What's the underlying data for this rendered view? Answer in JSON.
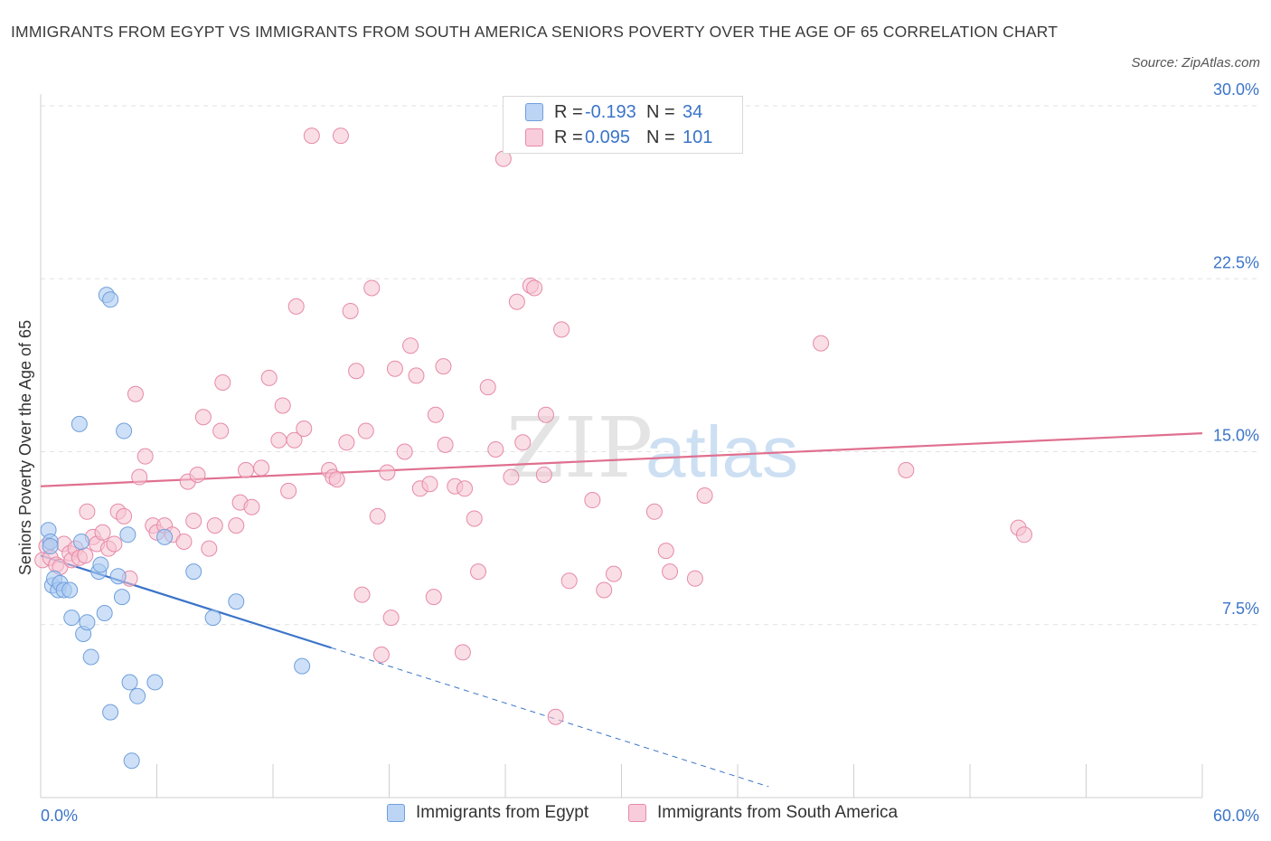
{
  "title": "IMMIGRANTS FROM EGYPT VS IMMIGRANTS FROM SOUTH AMERICA SENIORS POVERTY OVER THE AGE OF 65 CORRELATION CHART",
  "source": "Source: ZipAtlas.com",
  "watermark": {
    "zip": "ZIP",
    "atlas": "atlas"
  },
  "legend": {
    "egypt": {
      "r_label": "R =",
      "r_value": "-0.193",
      "n_label": "N =",
      "n_value": "34"
    },
    "south_america": {
      "r_label": "R =",
      "r_value": "0.095",
      "n_label": "N =",
      "n_value": "101"
    }
  },
  "bottom_legend": {
    "egypt": "Immigrants from Egypt",
    "south_america": "Immigrants from South America"
  },
  "colors": {
    "egypt_fill": "#aecbf2",
    "egypt_stroke": "#6f9fdc",
    "egypt_line": "#3b74c9",
    "sa_fill": "#f6c2d2",
    "sa_stroke": "#e68aa8",
    "sa_line": "#e0708f",
    "grid": "#e2e2e2",
    "tick_text": "#3b74c9"
  },
  "chart_data": {
    "type": "scatter",
    "title": "IMMIGRANTS FROM EGYPT VS IMMIGRANTS FROM SOUTH AMERICA SENIORS POVERTY OVER THE AGE OF 65 CORRELATION CHART",
    "xlabel": "",
    "ylabel": "Seniors Poverty Over the Age of 65",
    "xlim": [
      0,
      60
    ],
    "ylim": [
      0,
      30
    ],
    "x_tick_labels": [
      "0.0%",
      "60.0%"
    ],
    "y_ticks": [
      7.5,
      15.0,
      22.5,
      30.0
    ],
    "y_tick_labels": [
      "7.5%",
      "15.0%",
      "22.5%",
      "30.0%"
    ],
    "series": [
      {
        "name": "Immigrants from Egypt",
        "r": -0.193,
        "n": 34,
        "trend": {
          "x0": 0.0,
          "y0": 10.5,
          "x1": 15.0,
          "y1": 6.5,
          "dash_to_x": 37.6
        },
        "points": [
          [
            0.4,
            11.6
          ],
          [
            0.5,
            11.1
          ],
          [
            0.5,
            10.9
          ],
          [
            0.6,
            9.2
          ],
          [
            0.7,
            9.5
          ],
          [
            0.9,
            9.0
          ],
          [
            1.0,
            9.3
          ],
          [
            1.2,
            9.0
          ],
          [
            1.5,
            9.0
          ],
          [
            1.6,
            7.8
          ],
          [
            2.0,
            16.2
          ],
          [
            2.1,
            11.1
          ],
          [
            2.2,
            7.1
          ],
          [
            2.4,
            7.6
          ],
          [
            2.6,
            6.1
          ],
          [
            3.0,
            9.8
          ],
          [
            3.1,
            10.1
          ],
          [
            3.3,
            8.0
          ],
          [
            3.4,
            21.8
          ],
          [
            3.6,
            21.6
          ],
          [
            3.6,
            3.7
          ],
          [
            4.0,
            9.6
          ],
          [
            4.2,
            8.7
          ],
          [
            4.3,
            15.9
          ],
          [
            4.5,
            11.4
          ],
          [
            4.6,
            5.0
          ],
          [
            4.7,
            1.6
          ],
          [
            5.0,
            4.4
          ],
          [
            5.9,
            5.0
          ],
          [
            6.4,
            11.3
          ],
          [
            7.9,
            9.8
          ],
          [
            8.9,
            7.8
          ],
          [
            10.1,
            8.5
          ],
          [
            13.5,
            5.7
          ]
        ]
      },
      {
        "name": "Immigrants from South America",
        "r": 0.095,
        "n": 101,
        "trend": {
          "x0": 0.0,
          "y0": 13.5,
          "x1": 60.0,
          "y1": 15.8
        },
        "points": [
          [
            0.1,
            10.3
          ],
          [
            0.3,
            10.9
          ],
          [
            0.5,
            10.4
          ],
          [
            0.8,
            10.1
          ],
          [
            1.0,
            10.0
          ],
          [
            1.2,
            11.0
          ],
          [
            1.5,
            10.6
          ],
          [
            1.6,
            10.3
          ],
          [
            1.8,
            10.8
          ],
          [
            2.0,
            10.4
          ],
          [
            2.3,
            10.5
          ],
          [
            2.4,
            12.4
          ],
          [
            2.7,
            11.3
          ],
          [
            2.9,
            11.0
          ],
          [
            3.2,
            11.5
          ],
          [
            3.5,
            10.8
          ],
          [
            3.8,
            11.0
          ],
          [
            4.0,
            12.4
          ],
          [
            4.3,
            12.2
          ],
          [
            4.6,
            9.5
          ],
          [
            4.9,
            17.5
          ],
          [
            5.1,
            13.9
          ],
          [
            5.4,
            14.8
          ],
          [
            5.8,
            11.8
          ],
          [
            6.0,
            11.5
          ],
          [
            6.4,
            11.8
          ],
          [
            6.8,
            11.4
          ],
          [
            7.4,
            11.1
          ],
          [
            7.6,
            13.7
          ],
          [
            7.9,
            12.0
          ],
          [
            8.1,
            14.0
          ],
          [
            8.4,
            16.5
          ],
          [
            8.7,
            10.8
          ],
          [
            9.0,
            11.8
          ],
          [
            9.3,
            15.9
          ],
          [
            9.4,
            18.0
          ],
          [
            10.1,
            11.8
          ],
          [
            10.3,
            12.8
          ],
          [
            10.6,
            14.2
          ],
          [
            10.9,
            12.6
          ],
          [
            11.4,
            14.3
          ],
          [
            11.8,
            18.2
          ],
          [
            12.3,
            15.5
          ],
          [
            12.5,
            17.0
          ],
          [
            12.8,
            13.3
          ],
          [
            13.1,
            15.5
          ],
          [
            13.2,
            21.3
          ],
          [
            13.6,
            16.0
          ],
          [
            14.0,
            28.7
          ],
          [
            14.9,
            14.2
          ],
          [
            15.1,
            13.9
          ],
          [
            15.3,
            13.8
          ],
          [
            15.5,
            28.7
          ],
          [
            15.8,
            15.4
          ],
          [
            16.0,
            21.1
          ],
          [
            16.3,
            18.5
          ],
          [
            16.6,
            8.8
          ],
          [
            16.8,
            15.9
          ],
          [
            17.1,
            22.1
          ],
          [
            17.4,
            12.2
          ],
          [
            17.6,
            6.2
          ],
          [
            17.9,
            14.1
          ],
          [
            18.1,
            7.8
          ],
          [
            18.3,
            18.6
          ],
          [
            18.8,
            15.0
          ],
          [
            19.1,
            19.6
          ],
          [
            19.4,
            18.3
          ],
          [
            19.6,
            13.4
          ],
          [
            20.1,
            13.6
          ],
          [
            20.3,
            8.7
          ],
          [
            20.4,
            16.6
          ],
          [
            20.8,
            18.7
          ],
          [
            20.9,
            15.3
          ],
          [
            21.4,
            13.5
          ],
          [
            21.8,
            6.3
          ],
          [
            21.9,
            13.4
          ],
          [
            22.4,
            12.1
          ],
          [
            22.6,
            9.8
          ],
          [
            23.1,
            17.8
          ],
          [
            23.5,
            15.1
          ],
          [
            23.9,
            27.7
          ],
          [
            24.3,
            13.9
          ],
          [
            24.6,
            21.5
          ],
          [
            24.9,
            15.4
          ],
          [
            25.3,
            22.2
          ],
          [
            25.5,
            22.1
          ],
          [
            26.0,
            14.0
          ],
          [
            26.1,
            16.6
          ],
          [
            26.6,
            3.5
          ],
          [
            26.9,
            20.3
          ],
          [
            27.3,
            9.4
          ],
          [
            28.5,
            12.9
          ],
          [
            29.1,
            9.0
          ],
          [
            29.6,
            9.7
          ],
          [
            31.7,
            12.4
          ],
          [
            32.3,
            10.7
          ],
          [
            32.5,
            9.8
          ],
          [
            33.8,
            9.5
          ],
          [
            34.3,
            13.1
          ],
          [
            40.3,
            19.7
          ],
          [
            44.7,
            14.2
          ],
          [
            50.5,
            11.7
          ],
          [
            50.8,
            11.4
          ]
        ]
      }
    ]
  }
}
